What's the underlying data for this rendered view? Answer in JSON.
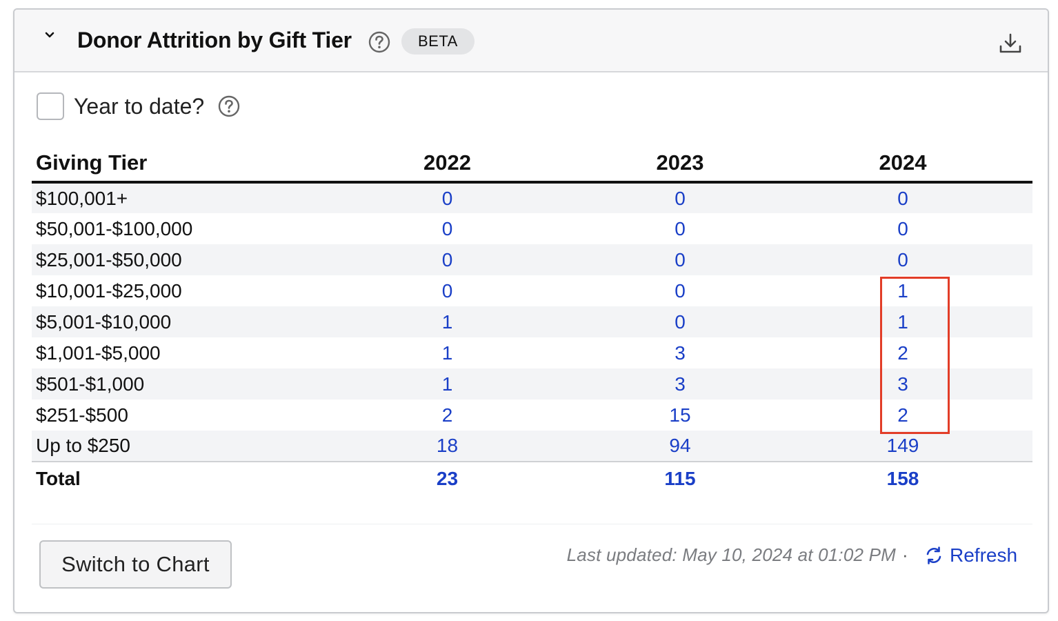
{
  "header": {
    "title": "Donor Attrition by Gift Tier",
    "badge": "BETA"
  },
  "filters": {
    "ytd_label": "Year to date?",
    "ytd_checked": false
  },
  "table": {
    "columns": [
      "Giving Tier",
      "2022",
      "2023",
      "2024"
    ],
    "rows": [
      {
        "tier": "$100,001+",
        "values": [
          "0",
          "0",
          "0"
        ]
      },
      {
        "tier": "$50,001-$100,000",
        "values": [
          "0",
          "0",
          "0"
        ]
      },
      {
        "tier": "$25,001-$50,000",
        "values": [
          "0",
          "0",
          "0"
        ]
      },
      {
        "tier": "$10,001-$25,000",
        "values": [
          "0",
          "0",
          "1"
        ]
      },
      {
        "tier": "$5,001-$10,000",
        "values": [
          "1",
          "0",
          "1"
        ]
      },
      {
        "tier": "$1,001-$5,000",
        "values": [
          "1",
          "3",
          "2"
        ]
      },
      {
        "tier": "$501-$1,000",
        "values": [
          "1",
          "3",
          "3"
        ]
      },
      {
        "tier": "$251-$500",
        "values": [
          "2",
          "15",
          "2"
        ]
      },
      {
        "tier": "Up to $250",
        "values": [
          "18",
          "94",
          "149"
        ]
      }
    ],
    "total": {
      "label": "Total",
      "values": [
        "23",
        "115",
        "158"
      ]
    }
  },
  "footer": {
    "switch_label": "Switch to Chart",
    "last_updated": "Last updated: May 10, 2024 at 01:02 PM",
    "separator": "·",
    "refresh_label": "Refresh"
  },
  "colors": {
    "link": "#1a3fc7",
    "highlight": "#e23d28",
    "stripe": "#f3f4f6"
  },
  "icons": [
    "chevron-down-icon",
    "help-icon",
    "download-icon",
    "refresh-icon"
  ]
}
